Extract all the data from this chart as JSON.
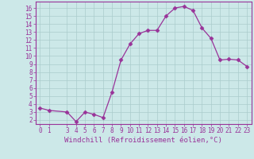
{
  "x_vals": [
    0,
    1,
    3,
    4,
    5,
    6,
    7,
    8,
    9,
    10,
    11,
    12,
    13,
    14,
    15,
    16,
    17,
    18,
    19,
    20,
    21,
    22,
    23
  ],
  "y_vals": [
    3.5,
    3.2,
    3.0,
    1.8,
    3.0,
    2.7,
    2.3,
    5.5,
    9.5,
    11.5,
    12.8,
    13.2,
    13.2,
    15.0,
    16.0,
    16.2,
    15.7,
    13.5,
    12.2,
    9.5,
    9.6,
    9.5,
    8.7
  ],
  "line_color": "#993399",
  "marker": "D",
  "marker_size": 2.5,
  "bg_color": "#cce8e8",
  "grid_color": "#aacccc",
  "axis_color": "#993399",
  "spine_color": "#993399",
  "xlabel": "Windchill (Refroidissement éolien,°C)",
  "xlim": [
    -0.5,
    23.5
  ],
  "ylim": [
    1.5,
    16.8
  ],
  "yticks": [
    2,
    3,
    4,
    5,
    6,
    7,
    8,
    9,
    10,
    11,
    12,
    13,
    14,
    15,
    16
  ],
  "xticks": [
    0,
    1,
    3,
    4,
    5,
    6,
    7,
    8,
    9,
    10,
    11,
    12,
    13,
    14,
    15,
    16,
    17,
    18,
    19,
    20,
    21,
    22,
    23
  ],
  "tick_fontsize": 5.5,
  "label_fontsize": 6.5
}
